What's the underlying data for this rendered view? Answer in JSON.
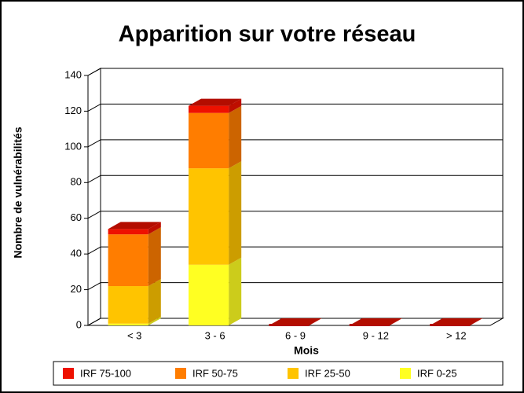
{
  "chart_data": {
    "type": "bar3d_stacked",
    "title": "Apparition sur votre réseau",
    "y_label": "Nombre de vulnérabilités",
    "x_label": "Mois",
    "categories": [
      "< 3",
      "3 - 6",
      "6 - 9",
      "9 - 12",
      "> 12"
    ],
    "series": [
      {
        "name": "IRF 75-100",
        "color": "#ee1100",
        "values": [
          3,
          4,
          0,
          0,
          0
        ]
      },
      {
        "name": "IRF 50-75",
        "color": "#ff7d00",
        "values": [
          29,
          31,
          0,
          0,
          0
        ]
      },
      {
        "name": "IRF 25-50",
        "color": "#ffc400",
        "values": [
          21,
          54,
          0,
          0,
          0
        ]
      },
      {
        "name": "IRF 0-25",
        "color": "#ffff22",
        "values": [
          1,
          34,
          0,
          0,
          0
        ]
      }
    ],
    "ylim": [
      0,
      140
    ],
    "yticks": [
      0,
      20,
      40,
      60,
      80,
      100,
      120,
      140
    ],
    "grid": true,
    "legend": "bottom"
  }
}
